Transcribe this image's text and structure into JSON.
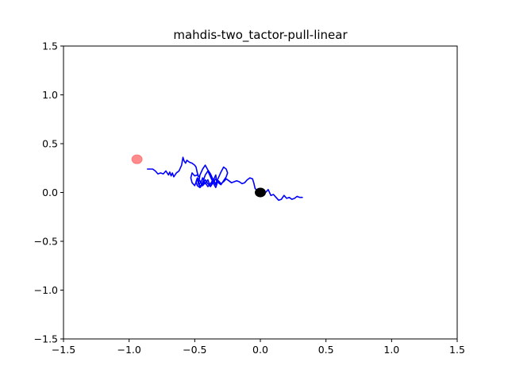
{
  "chart_data": {
    "type": "line",
    "title": "mahdis-two_tactor-pull-linear",
    "xlabel": "",
    "ylabel": "",
    "xlim": [
      -1.5,
      1.5
    ],
    "ylim": [
      -1.5,
      1.5
    ],
    "xticks": [
      -1.5,
      -1.0,
      -0.5,
      0.0,
      0.5,
      1.0,
      1.5
    ],
    "xtick_labels": [
      "−1.5",
      "−1.0",
      "−0.5",
      "0.0",
      "0.5",
      "1.0",
      "1.5"
    ],
    "yticks": [
      1.5,
      1.0,
      0.5,
      0.0,
      -0.5,
      -1.0,
      -1.5
    ],
    "ytick_labels": [
      "1.5",
      "1.0",
      "0.5",
      "0.0",
      "−0.5",
      "−1.0",
      "−1.5"
    ],
    "grid": false,
    "series": [
      {
        "color": "#0000ff",
        "x": [
          -0.86,
          -0.82,
          -0.8,
          -0.78,
          -0.76,
          -0.74,
          -0.72,
          -0.7,
          -0.69,
          -0.68,
          -0.67,
          -0.66,
          -0.65,
          -0.64,
          -0.63,
          -0.62,
          -0.6,
          -0.59,
          -0.58,
          -0.57,
          -0.56,
          -0.54,
          -0.52,
          -0.5,
          -0.49,
          -0.48,
          -0.47,
          -0.48,
          -0.5,
          -0.52,
          -0.53,
          -0.52,
          -0.5,
          -0.48,
          -0.47,
          -0.45,
          -0.44,
          -0.42,
          -0.4,
          -0.38,
          -0.36,
          -0.34,
          -0.33,
          -0.34,
          -0.36,
          -0.38,
          -0.4,
          -0.42,
          -0.44,
          -0.46,
          -0.47,
          -0.46,
          -0.44,
          -0.42,
          -0.4,
          -0.38,
          -0.36,
          -0.34,
          -0.32,
          -0.3,
          -0.28,
          -0.26,
          -0.25,
          -0.26,
          -0.28,
          -0.3,
          -0.32,
          -0.34,
          -0.36,
          -0.38,
          -0.4,
          -0.42,
          -0.44,
          -0.46,
          -0.48,
          -0.49,
          -0.48,
          -0.46,
          -0.44,
          -0.42,
          -0.4,
          -0.38,
          -0.36,
          -0.34,
          -0.32,
          -0.3,
          -0.28,
          -0.26,
          -0.24,
          -0.22,
          -0.2,
          -0.18,
          -0.16,
          -0.14,
          -0.12,
          -0.1,
          -0.08,
          -0.06,
          -0.05,
          -0.04,
          -0.02,
          0.0,
          0.02,
          0.04,
          0.06,
          0.08,
          0.1,
          0.12,
          0.14,
          0.16,
          0.18,
          0.2,
          0.22,
          0.24,
          0.26,
          0.28,
          0.3,
          0.32
        ],
        "y": [
          0.24,
          0.24,
          0.22,
          0.19,
          0.2,
          0.19,
          0.22,
          0.18,
          0.21,
          0.17,
          0.2,
          0.16,
          0.18,
          0.2,
          0.21,
          0.22,
          0.28,
          0.36,
          0.32,
          0.3,
          0.33,
          0.31,
          0.3,
          0.28,
          0.26,
          0.2,
          0.16,
          0.18,
          0.17,
          0.2,
          0.15,
          0.1,
          0.07,
          0.14,
          0.08,
          0.11,
          0.15,
          0.09,
          0.13,
          0.06,
          0.12,
          0.18,
          0.09,
          0.05,
          0.1,
          0.16,
          0.22,
          0.18,
          0.1,
          0.06,
          0.1,
          0.18,
          0.24,
          0.28,
          0.23,
          0.19,
          0.13,
          0.09,
          0.15,
          0.21,
          0.26,
          0.24,
          0.2,
          0.16,
          0.12,
          0.08,
          0.1,
          0.14,
          0.1,
          0.06,
          0.09,
          0.13,
          0.08,
          0.05,
          0.07,
          0.11,
          0.15,
          0.12,
          0.07,
          0.1,
          0.06,
          0.09,
          0.13,
          0.08,
          0.12,
          0.09,
          0.11,
          0.14,
          0.12,
          0.1,
          0.11,
          0.12,
          0.11,
          0.09,
          0.1,
          0.13,
          0.15,
          0.14,
          0.1,
          0.04,
          0.02,
          0.01,
          0.02,
          0.0,
          0.03,
          -0.03,
          -0.02,
          -0.05,
          -0.08,
          -0.07,
          -0.03,
          -0.06,
          -0.05,
          -0.07,
          -0.06,
          -0.04,
          -0.05,
          -0.05
        ]
      }
    ],
    "markers": [
      {
        "x": -0.94,
        "y": 0.34,
        "color": "#ff6666",
        "opacity": 0.75
      },
      {
        "x": 0.0,
        "y": 0.0,
        "color": "#000000",
        "opacity": 1.0
      }
    ]
  }
}
